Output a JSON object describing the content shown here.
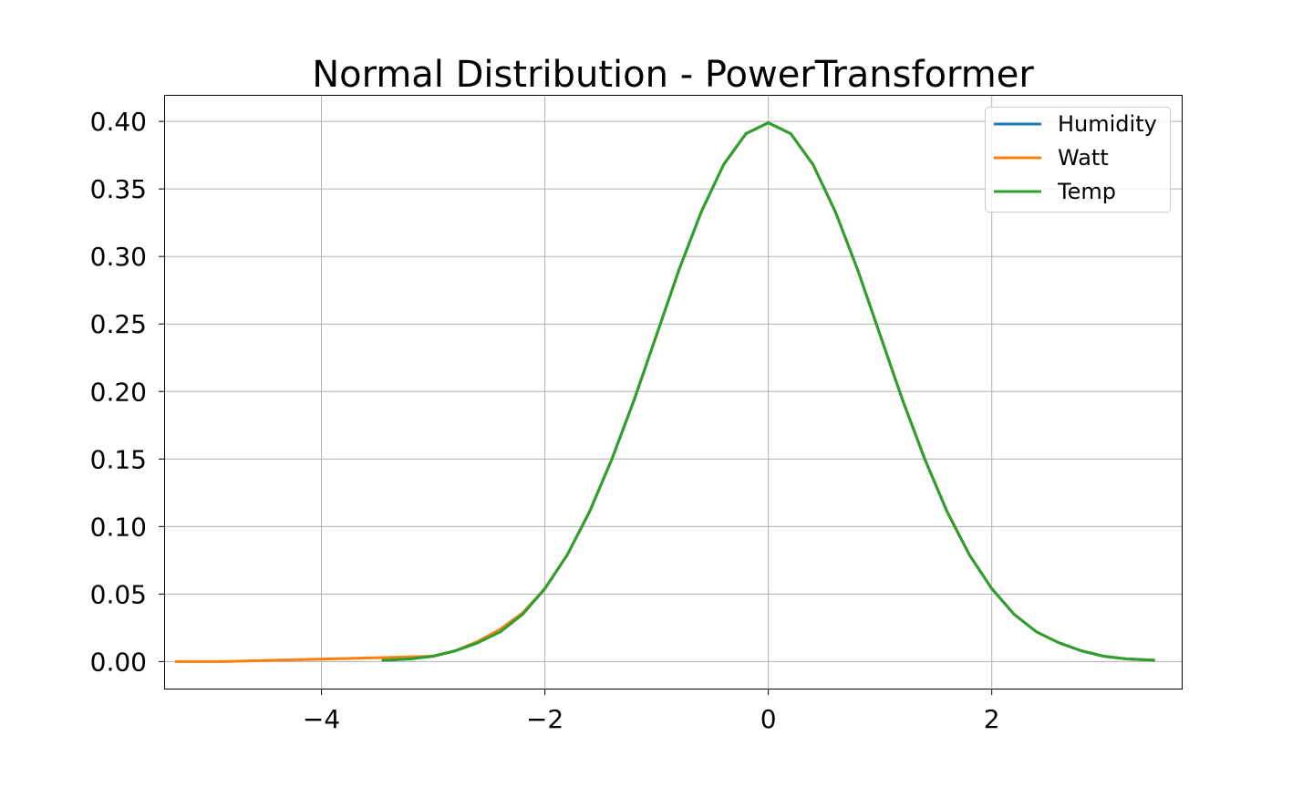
{
  "chart_data": {
    "type": "line",
    "title": "Normal Distribution - PowerTransformer",
    "xlabel": "",
    "ylabel": "",
    "xlim": [
      -5.4,
      3.7
    ],
    "ylim": [
      -0.02,
      0.419
    ],
    "grid": true,
    "legend_position": "top-right",
    "x_ticks": [
      -4,
      -2,
      0,
      2
    ],
    "x_tick_labels": [
      "−4",
      "−2",
      "0",
      "2"
    ],
    "y_ticks": [
      0.0,
      0.05,
      0.1,
      0.15,
      0.2,
      0.25,
      0.3,
      0.35,
      0.4
    ],
    "y_tick_labels": [
      "0.00",
      "0.05",
      "0.10",
      "0.15",
      "0.20",
      "0.25",
      "0.30",
      "0.35",
      "0.40"
    ],
    "series": [
      {
        "name": "Humidity",
        "color": "#1f77b4",
        "points": [
          [
            -3.4,
            0.001
          ],
          [
            -3.2,
            0.002
          ],
          [
            -3.0,
            0.004
          ],
          [
            -2.8,
            0.008
          ],
          [
            -2.6,
            0.014
          ],
          [
            -2.4,
            0.022
          ],
          [
            -2.2,
            0.035
          ],
          [
            -2.0,
            0.054
          ],
          [
            -1.8,
            0.079
          ],
          [
            -1.6,
            0.111
          ],
          [
            -1.4,
            0.15
          ],
          [
            -1.2,
            0.194
          ],
          [
            -1.0,
            0.242
          ],
          [
            -0.8,
            0.29
          ],
          [
            -0.6,
            0.333
          ],
          [
            -0.4,
            0.368
          ],
          [
            -0.2,
            0.391
          ],
          [
            0.0,
            0.399
          ],
          [
            0.2,
            0.391
          ],
          [
            0.4,
            0.368
          ],
          [
            0.6,
            0.333
          ],
          [
            0.8,
            0.29
          ],
          [
            1.0,
            0.242
          ],
          [
            1.2,
            0.194
          ],
          [
            1.4,
            0.15
          ],
          [
            1.6,
            0.111
          ],
          [
            1.8,
            0.079
          ],
          [
            2.0,
            0.054
          ],
          [
            2.2,
            0.035
          ],
          [
            2.4,
            0.022
          ],
          [
            2.6,
            0.014
          ],
          [
            2.8,
            0.008
          ],
          [
            3.0,
            0.004
          ],
          [
            3.2,
            0.002
          ],
          [
            3.45,
            0.001
          ]
        ]
      },
      {
        "name": "Watt",
        "color": "#ff7f0e",
        "points": [
          [
            -5.3,
            0.0
          ],
          [
            -4.9,
            0.0
          ],
          [
            -4.4,
            0.001
          ],
          [
            -3.9,
            0.002
          ],
          [
            -3.4,
            0.003
          ],
          [
            -3.0,
            0.004
          ],
          [
            -2.8,
            0.008
          ],
          [
            -2.6,
            0.015
          ],
          [
            -2.4,
            0.024
          ],
          [
            -2.2,
            0.036
          ],
          [
            -2.0,
            0.054
          ],
          [
            -1.8,
            0.079
          ],
          [
            -1.6,
            0.111
          ],
          [
            -1.4,
            0.15
          ],
          [
            -1.2,
            0.194
          ],
          [
            -1.0,
            0.242
          ],
          [
            -0.8,
            0.29
          ],
          [
            -0.6,
            0.333
          ],
          [
            -0.4,
            0.368
          ],
          [
            -0.2,
            0.391
          ],
          [
            0.0,
            0.399
          ],
          [
            0.2,
            0.391
          ],
          [
            0.4,
            0.368
          ],
          [
            0.6,
            0.333
          ],
          [
            0.8,
            0.29
          ],
          [
            1.0,
            0.242
          ],
          [
            1.2,
            0.194
          ],
          [
            1.4,
            0.15
          ],
          [
            1.6,
            0.111
          ],
          [
            1.8,
            0.079
          ],
          [
            2.0,
            0.054
          ],
          [
            2.2,
            0.035
          ],
          [
            2.4,
            0.022
          ],
          [
            2.6,
            0.014
          ],
          [
            2.8,
            0.008
          ],
          [
            3.0,
            0.004
          ],
          [
            3.2,
            0.002
          ],
          [
            3.45,
            0.001
          ]
        ]
      },
      {
        "name": "Temp",
        "color": "#2ca02c",
        "points": [
          [
            -3.45,
            0.001
          ],
          [
            -3.2,
            0.002
          ],
          [
            -3.0,
            0.004
          ],
          [
            -2.8,
            0.008
          ],
          [
            -2.6,
            0.014
          ],
          [
            -2.4,
            0.022
          ],
          [
            -2.2,
            0.035
          ],
          [
            -2.0,
            0.054
          ],
          [
            -1.8,
            0.079
          ],
          [
            -1.6,
            0.111
          ],
          [
            -1.4,
            0.15
          ],
          [
            -1.2,
            0.194
          ],
          [
            -1.0,
            0.242
          ],
          [
            -0.8,
            0.29
          ],
          [
            -0.6,
            0.333
          ],
          [
            -0.4,
            0.368
          ],
          [
            -0.2,
            0.391
          ],
          [
            0.0,
            0.399
          ],
          [
            0.2,
            0.391
          ],
          [
            0.4,
            0.368
          ],
          [
            0.6,
            0.333
          ],
          [
            0.8,
            0.29
          ],
          [
            1.0,
            0.242
          ],
          [
            1.2,
            0.194
          ],
          [
            1.4,
            0.15
          ],
          [
            1.6,
            0.111
          ],
          [
            1.8,
            0.079
          ],
          [
            2.0,
            0.054
          ],
          [
            2.2,
            0.035
          ],
          [
            2.4,
            0.022
          ],
          [
            2.6,
            0.014
          ],
          [
            2.8,
            0.008
          ],
          [
            3.0,
            0.004
          ],
          [
            3.2,
            0.002
          ],
          [
            3.45,
            0.001
          ]
        ]
      }
    ]
  }
}
